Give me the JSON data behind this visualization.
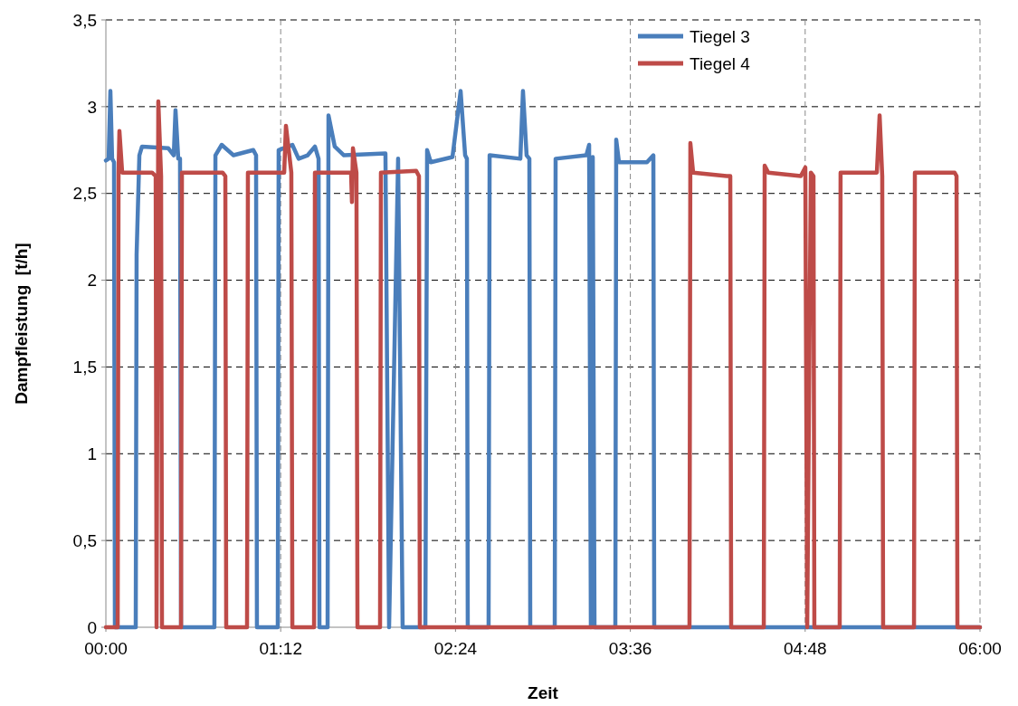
{
  "chart_data": {
    "type": "line",
    "xlabel": "Zeit",
    "ylabel": "Dampfleistung  [t/h]",
    "x": [
      0,
      0.019,
      0.031,
      0.043,
      0.056,
      0.062,
      0.205,
      0.211,
      0.23,
      0.248,
      0.429,
      0.466,
      0.478,
      0.497,
      0.509,
      0.516,
      0.745,
      0.752,
      0.795,
      0.876,
      1.012,
      1.031,
      1.037,
      1.18,
      1.186,
      1.28,
      1.323,
      1.385,
      1.435,
      1.46,
      1.466,
      1.522,
      1.528,
      1.571,
      1.634,
      1.919,
      1.944,
      2.006,
      2.037,
      2.193,
      2.205,
      2.23,
      2.379,
      2.435,
      2.466,
      2.478,
      2.484,
      2.627,
      2.634,
      2.845,
      2.863,
      2.888,
      2.907,
      2.913,
      3.081,
      3.087,
      3.298,
      3.317,
      3.329,
      3.342,
      3.354,
      3.497,
      3.503,
      3.522,
      3.714,
      3.758,
      3.764,
      6.0
    ],
    "series": [
      {
        "name": "Tiegel 3",
        "color": "#4a7ebb",
        "values": [
          2.69,
          2.7,
          3.09,
          2.7,
          2.68,
          0,
          0,
          2.15,
          2.72,
          2.77,
          2.76,
          2.72,
          2.98,
          2.7,
          2.7,
          0,
          0,
          2.72,
          2.78,
          2.72,
          2.75,
          2.72,
          0,
          0,
          2.75,
          2.78,
          2.7,
          2.72,
          2.77,
          2.7,
          0,
          0,
          2.95,
          2.77,
          2.72,
          2.73,
          0,
          2.7,
          0,
          0,
          2.75,
          2.68,
          2.71,
          3.09,
          2.72,
          2.7,
          0,
          0,
          2.72,
          2.7,
          3.09,
          2.72,
          2.7,
          0,
          0,
          2.7,
          2.72,
          2.78,
          0,
          2.71,
          0,
          0,
          2.81,
          2.68,
          2.68,
          2.72,
          0,
          0
        ]
      },
      {
        "name": "Tiegel 4",
        "color": "#be4b48",
        "x": [
          0,
          0.081,
          0.087,
          0.093,
          0.112,
          0.317,
          0.342,
          0.348,
          0.36,
          0.379,
          0.385,
          0.516,
          0.522,
          0.801,
          0.82,
          0.826,
          0.969,
          0.975,
          1.224,
          1.236,
          1.273,
          1.28,
          1.429,
          1.435,
          1.683,
          1.689,
          1.696,
          1.72,
          1.727,
          1.882,
          1.888,
          2.13,
          2.149,
          2.155,
          4.006,
          4.012,
          4.031,
          4.261,
          4.286,
          4.292,
          4.516,
          4.522,
          4.547,
          4.77,
          4.801,
          4.814,
          4.839,
          4.857,
          4.863,
          5.037,
          5.043,
          5.292,
          5.311,
          5.329,
          5.335,
          5.547,
          5.553,
          5.826,
          5.839,
          5.845,
          6.0
        ],
        "values": [
          0,
          0,
          2.62,
          2.86,
          2.62,
          2.62,
          2.6,
          0,
          3.03,
          2.6,
          0,
          0,
          2.62,
          2.62,
          2.6,
          0,
          0,
          2.62,
          2.62,
          2.89,
          2.62,
          0,
          0,
          2.62,
          2.62,
          2.45,
          2.76,
          2.62,
          0,
          0,
          2.62,
          2.63,
          2.6,
          0,
          0,
          2.79,
          2.62,
          2.6,
          2.6,
          0,
          0,
          2.66,
          2.62,
          2.6,
          2.65,
          0,
          2.62,
          2.6,
          0,
          0,
          2.62,
          2.62,
          2.95,
          2.6,
          0,
          0,
          2.62,
          2.62,
          2.6,
          0,
          0
        ]
      }
    ],
    "xlim": [
      0,
      6
    ],
    "xticks": [
      {
        "value": 0,
        "label": "00:00"
      },
      {
        "value": 1.2,
        "label": "01:12"
      },
      {
        "value": 2.4,
        "label": "02:24"
      },
      {
        "value": 3.6,
        "label": "03:36"
      },
      {
        "value": 4.8,
        "label": "04:48"
      },
      {
        "value": 6,
        "label": "06:00"
      }
    ],
    "ylim": [
      0,
      3.5
    ],
    "yticks": [
      {
        "value": 0,
        "label": "0"
      },
      {
        "value": 0.5,
        "label": "0,5"
      },
      {
        "value": 1,
        "label": "1"
      },
      {
        "value": 1.5,
        "label": "1,5"
      },
      {
        "value": 2,
        "label": "2"
      },
      {
        "value": 2.5,
        "label": "2,5"
      },
      {
        "value": 3,
        "label": "3"
      },
      {
        "value": 3.5,
        "label": "3,5"
      }
    ],
    "grid": true,
    "legend": "top right",
    "marker": "none",
    "line_style": "solid"
  }
}
